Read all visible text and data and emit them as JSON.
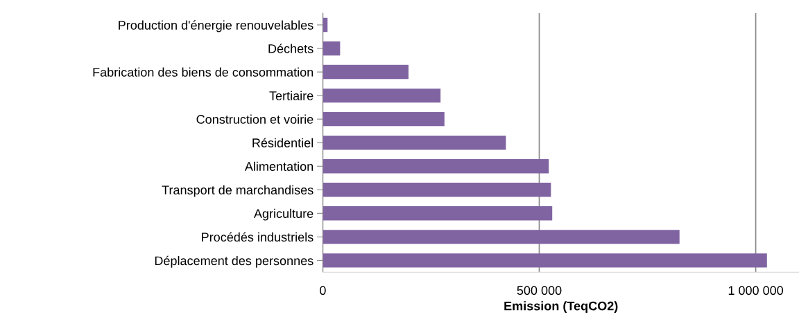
{
  "chart_data": {
    "type": "bar",
    "orientation": "horizontal",
    "xlabel": "Emission (TeqCO2)",
    "categories": [
      "Production d'énergie renouvelables",
      "Déchets",
      "Fabrication des biens de consommation",
      "Tertiaire",
      "Construction et voirie",
      "Résidentiel",
      "Alimentation",
      "Transport de marchandises",
      "Agriculture",
      "Procédés industriels",
      "Déplacement des personnes"
    ],
    "values": [
      11000,
      40000,
      198000,
      272000,
      281000,
      423000,
      522000,
      527000,
      530000,
      824000,
      1026000
    ],
    "color": "#8064a2",
    "xticks": [
      0,
      {
        "value": 500000,
        "label": "500 000"
      },
      {
        "value": 1000000,
        "label": "1 000 000"
      }
    ],
    "xlim": [
      0,
      1100000
    ],
    "grid": "x",
    "legend": false
  }
}
